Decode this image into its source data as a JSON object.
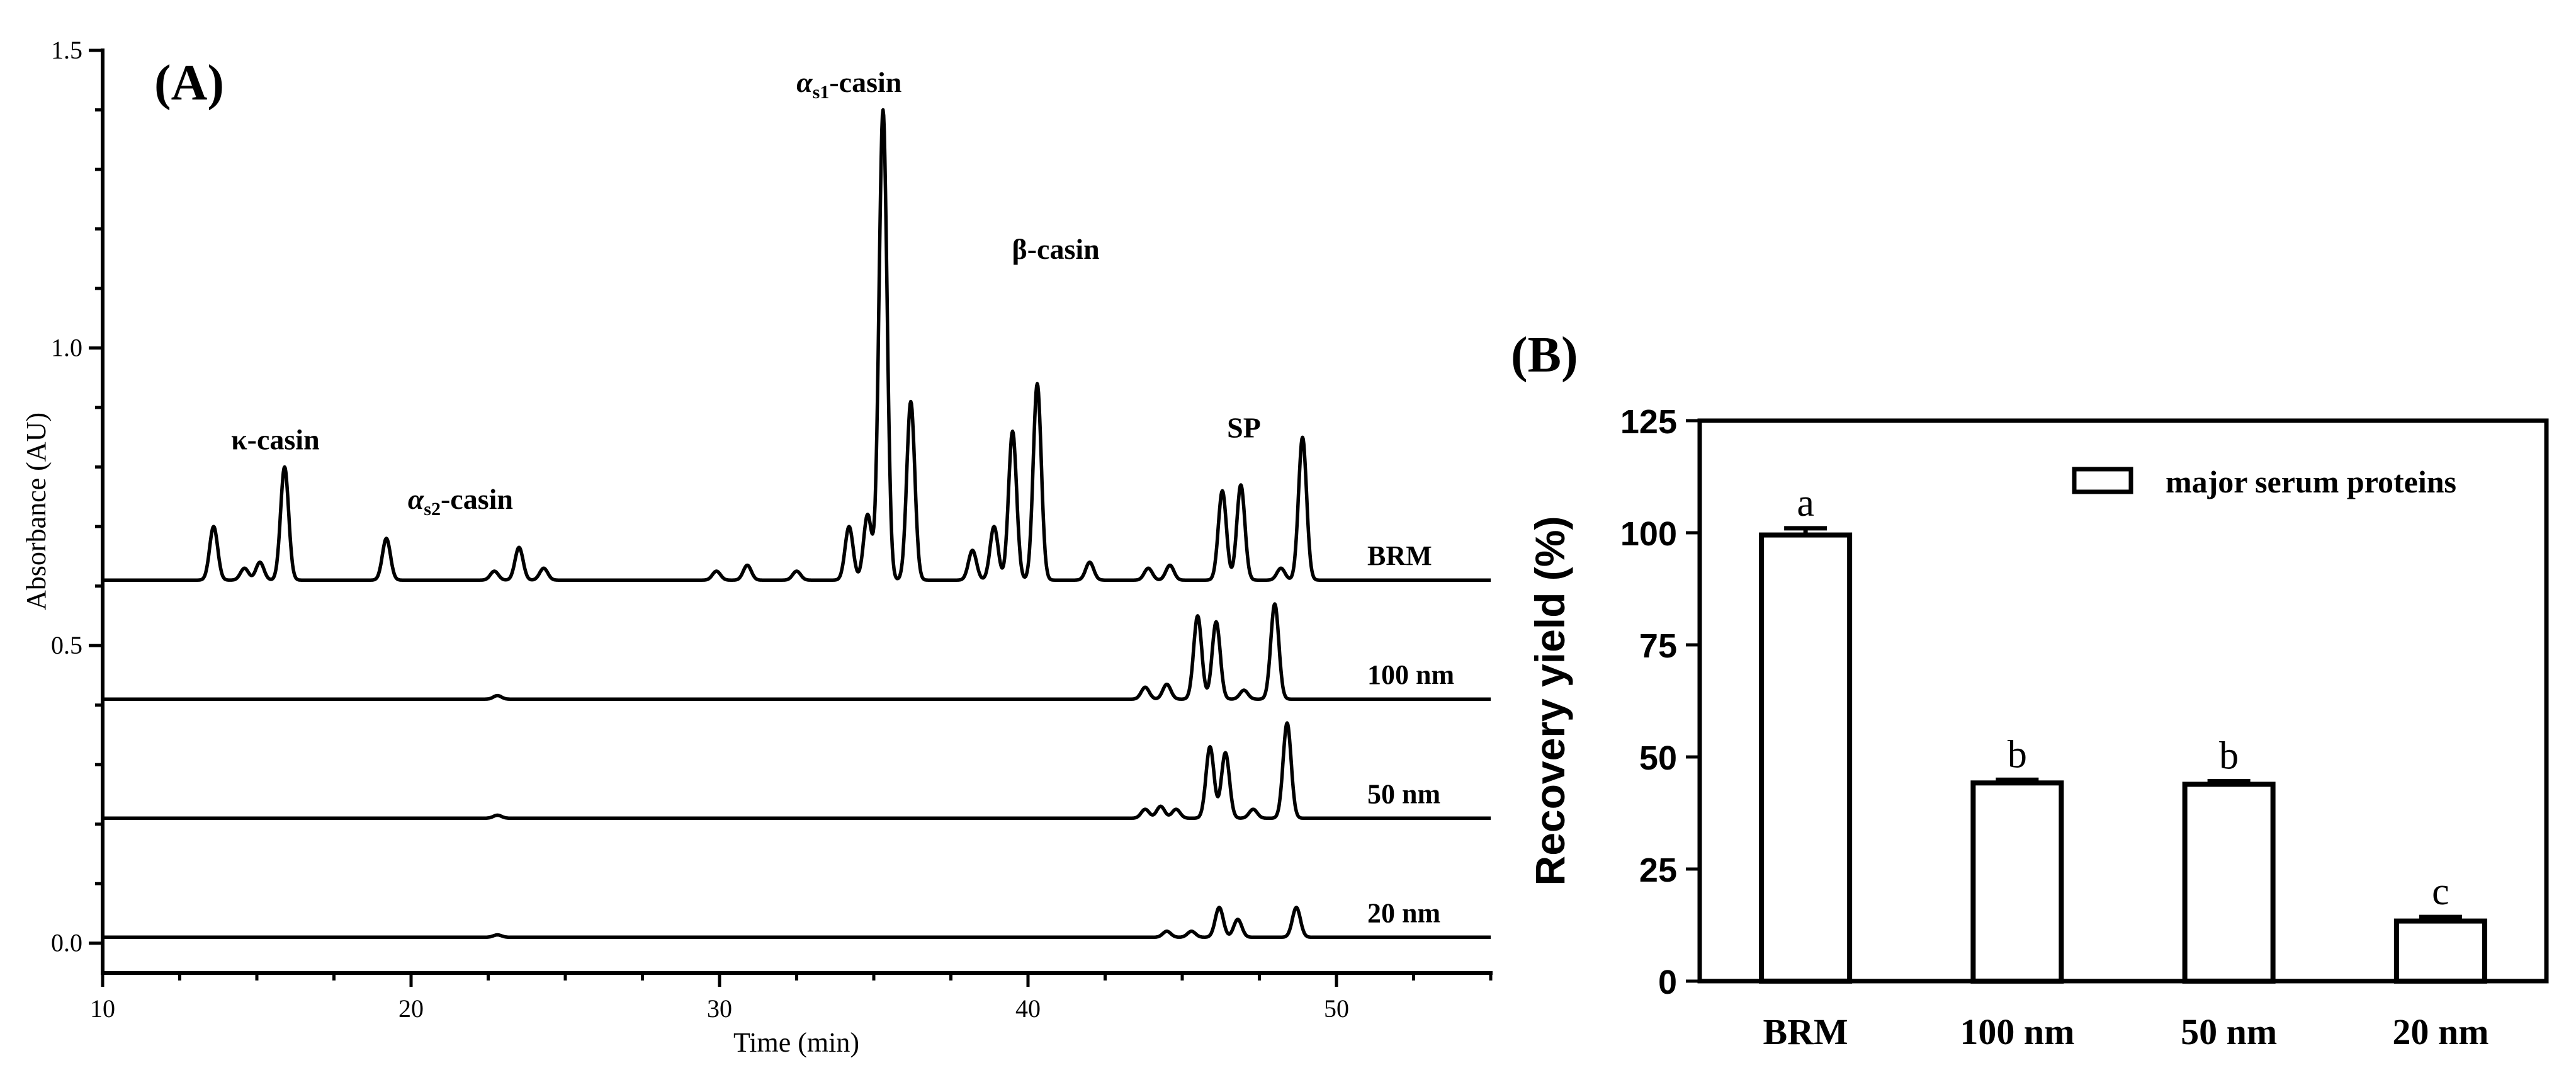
{
  "chart_data": [
    {
      "panel": "(A)",
      "type": "line",
      "xlabel": "Time (min)",
      "ylabel": "Absorbance (AU)",
      "xlim": [
        10,
        55
      ],
      "ylim": [
        -0.05,
        1.5
      ],
      "xticks": [
        "10",
        "20",
        "30",
        "40",
        "50"
      ],
      "yticks": [
        "0.0",
        "0.5",
        "1.0",
        "1.5"
      ],
      "grid": false,
      "series": [
        {
          "name": "BRM",
          "baseline": 0.61,
          "peaks": [
            {
              "t": 13.6,
              "h": 0.09
            },
            {
              "t": 14.6,
              "h": 0.02
            },
            {
              "t": 15.1,
              "h": 0.03
            },
            {
              "t": 15.9,
              "h": 0.19
            },
            {
              "t": 19.2,
              "h": 0.07
            },
            {
              "t": 22.7,
              "h": 0.015
            },
            {
              "t": 23.5,
              "h": 0.055
            },
            {
              "t": 24.3,
              "h": 0.02
            },
            {
              "t": 29.9,
              "h": 0.015
            },
            {
              "t": 30.9,
              "h": 0.025
            },
            {
              "t": 32.5,
              "h": 0.015
            },
            {
              "t": 34.2,
              "h": 0.09
            },
            {
              "t": 34.8,
              "h": 0.11
            },
            {
              "t": 35.3,
              "h": 0.79
            },
            {
              "t": 36.2,
              "h": 0.3
            },
            {
              "t": 38.2,
              "h": 0.05
            },
            {
              "t": 38.9,
              "h": 0.09
            },
            {
              "t": 39.5,
              "h": 0.25
            },
            {
              "t": 40.3,
              "h": 0.33
            },
            {
              "t": 42.0,
              "h": 0.03
            },
            {
              "t": 43.9,
              "h": 0.02
            },
            {
              "t": 44.6,
              "h": 0.025
            },
            {
              "t": 46.3,
              "h": 0.15
            },
            {
              "t": 46.9,
              "h": 0.16
            },
            {
              "t": 48.2,
              "h": 0.02
            },
            {
              "t": 48.9,
              "h": 0.24
            }
          ]
        },
        {
          "name": "100 nm",
          "baseline": 0.41,
          "peaks": [
            {
              "t": 22.8,
              "h": 0.006
            },
            {
              "t": 43.8,
              "h": 0.02
            },
            {
              "t": 44.5,
              "h": 0.025
            },
            {
              "t": 45.5,
              "h": 0.14
            },
            {
              "t": 46.1,
              "h": 0.13
            },
            {
              "t": 47.0,
              "h": 0.015
            },
            {
              "t": 48.0,
              "h": 0.16
            }
          ]
        },
        {
          "name": "50 nm",
          "baseline": 0.21,
          "peaks": [
            {
              "t": 22.8,
              "h": 0.005
            },
            {
              "t": 43.8,
              "h": 0.015
            },
            {
              "t": 44.3,
              "h": 0.02
            },
            {
              "t": 44.8,
              "h": 0.015
            },
            {
              "t": 45.9,
              "h": 0.12
            },
            {
              "t": 46.4,
              "h": 0.11
            },
            {
              "t": 47.3,
              "h": 0.015
            },
            {
              "t": 48.4,
              "h": 0.16
            }
          ]
        },
        {
          "name": "20 nm",
          "baseline": 0.01,
          "peaks": [
            {
              "t": 22.8,
              "h": 0.004
            },
            {
              "t": 44.5,
              "h": 0.01
            },
            {
              "t": 45.3,
              "h": 0.01
            },
            {
              "t": 46.2,
              "h": 0.05
            },
            {
              "t": 46.8,
              "h": 0.03
            },
            {
              "t": 48.7,
              "h": 0.05
            }
          ]
        }
      ],
      "annotations": [
        {
          "text": "κ-casin",
          "x": 15.6,
          "y": 0.83
        },
        {
          "main": "α",
          "sub": "s2",
          "rest": "-casin",
          "x": 21.6,
          "y": 0.73
        },
        {
          "main": "α",
          "sub": "s1",
          "rest": "-casin",
          "x": 34.2,
          "y": 1.43
        },
        {
          "text": "β-casin",
          "x": 40.9,
          "y": 1.15
        },
        {
          "text": "SP",
          "x": 47.0,
          "y": 0.85
        }
      ]
    },
    {
      "panel": "(B)",
      "type": "bar",
      "categories": [
        "BRM",
        "100 nm",
        "50 nm",
        "20 nm"
      ],
      "values": [
        99.5,
        44.2,
        43.9,
        13.4
      ],
      "errors": [
        1.5,
        0.7,
        0.7,
        0.9
      ],
      "significance": [
        "a",
        "b",
        "b",
        "c"
      ],
      "ylabel": "Recovery yield  (%)",
      "ylim": [
        0,
        125
      ],
      "yticks": [
        "0",
        "25",
        "50",
        "75",
        "100",
        "125"
      ],
      "legend": "major serum proteins",
      "legend_position": "top-right",
      "grid": false
    }
  ]
}
